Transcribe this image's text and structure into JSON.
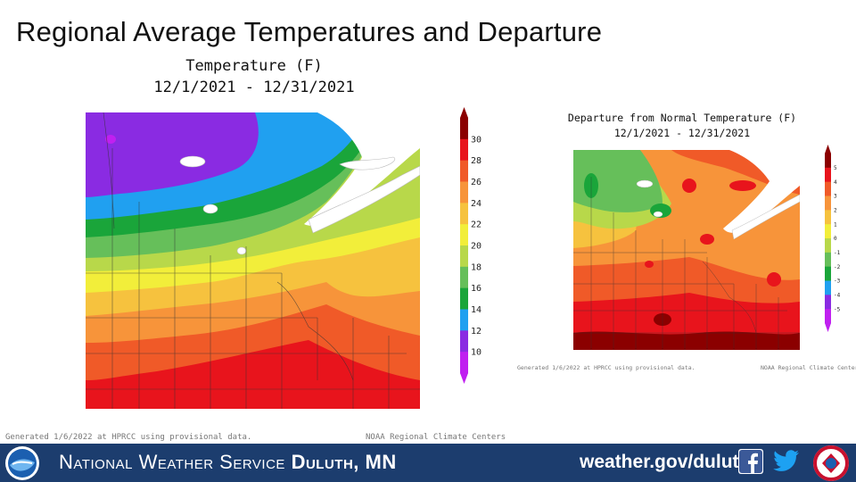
{
  "slide": {
    "title": "Regional Average Temperatures and Departure"
  },
  "left_map": {
    "title_line1": "Temperature (F)",
    "title_line2": "12/1/2021 - 12/31/2021",
    "footer_generated": "Generated 1/6/2022 at HPRCC using provisional data.",
    "footer_center": "NOAA Regional Climate Centers",
    "colorbar": {
      "ticks": [
        "30",
        "28",
        "26",
        "24",
        "22",
        "20",
        "18",
        "16",
        "14",
        "12",
        "10"
      ],
      "colors": [
        "#8b0000",
        "#e8141c",
        "#f05a28",
        "#f7943a",
        "#f6c23e",
        "#f2ee3a",
        "#b8d84a",
        "#66bf5a",
        "#1aa53a",
        "#20a0f0",
        "#8a2be2",
        "#c020f0"
      ]
    }
  },
  "right_map": {
    "title_line1": "Departure from Normal Temperature (F)",
    "title_line2": "12/1/2021 - 12/31/2021",
    "footer_generated": "Generated 1/6/2022 at HPRCC using provisional data.",
    "footer_center": "NOAA Regional Climate Centers",
    "colorbar": {
      "ticks": [
        "5",
        "4",
        "3",
        "2",
        "1",
        "0",
        "-1",
        "-2",
        "-3",
        "-4",
        "-5"
      ],
      "colors": [
        "#8b0000",
        "#e8141c",
        "#f05a28",
        "#f7943a",
        "#f6c23e",
        "#f2ee3a",
        "#b8d84a",
        "#66bf5a",
        "#1aa53a",
        "#20a0f0",
        "#8a2be2",
        "#c020f0"
      ]
    }
  },
  "banner": {
    "org_prefix": "National Weather Service",
    "office": "Duluth, MN",
    "url": "weather.gov/duluth",
    "bg_color": "#1c3d6e",
    "icons": [
      "noaa-logo",
      "facebook-icon",
      "twitter-icon",
      "nws-logo"
    ]
  }
}
